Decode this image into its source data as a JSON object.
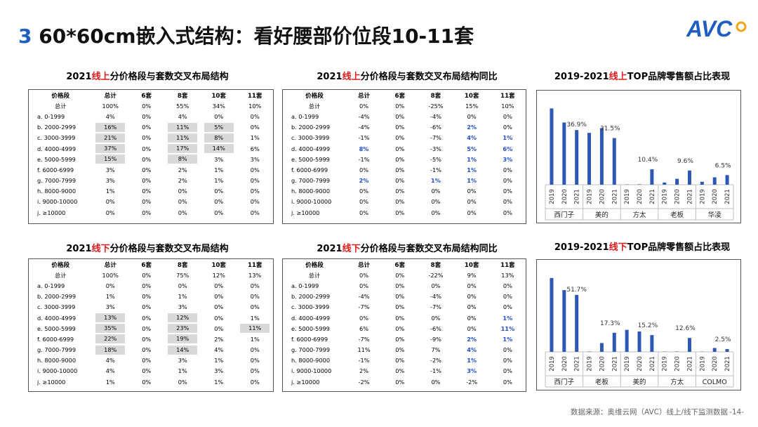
{
  "header": {
    "number": "3",
    "title": "60*60cm嵌入式结构：看好腰部价位段10-11套",
    "logo": "AVC"
  },
  "footer": {
    "source": "数据来源：奥维云网（AVC）线上/线下监测数据",
    "page": "-14-"
  },
  "section_titles": {
    "t1": {
      "pre": "2021",
      "hl": "线上",
      "post": "分价格段与套数交叉布局结构"
    },
    "t2": {
      "pre": "2021",
      "hl": "线上",
      "post": "分价格段与套数交叉布局结构同比"
    },
    "t3": {
      "pre": "2019-2021",
      "hl": "线上",
      "post": "TOP品牌零售额占比表现"
    },
    "t4": {
      "pre": "2021",
      "hl": "线下",
      "post": "分价格段与套数交叉布局结构"
    },
    "t5": {
      "pre": "2021",
      "hl": "线下",
      "post": "分价格段与套数交叉布局结构同比"
    },
    "t6": {
      "pre": "2019-2021",
      "hl": "线下",
      "post": "TOP品牌零售额占比表现"
    }
  },
  "chart_data": [
    {
      "id": "online_structure",
      "type": "table",
      "title": "2021线上分价格段与套数交叉布局结构",
      "columns": [
        "价格段",
        "总计",
        "6套",
        "8套",
        "10套",
        "11套"
      ],
      "rows": [
        [
          "总计",
          "100%",
          "0%",
          "55%",
          "34%",
          "10%"
        ],
        [
          "a. 0-1999",
          "4%",
          "0%",
          "4%",
          "0%",
          "0%"
        ],
        [
          "b. 2000-2999",
          "16%",
          "0%",
          "11%",
          "5%",
          "0%"
        ],
        [
          "c. 3000-3999",
          "21%",
          "0%",
          "11%",
          "8%",
          "1%"
        ],
        [
          "d. 4000-4999",
          "37%",
          "0%",
          "17%",
          "14%",
          "6%"
        ],
        [
          "e. 5000-5999",
          "15%",
          "0%",
          "8%",
          "3%",
          "3%"
        ],
        [
          "f. 6000-6999",
          "3%",
          "0%",
          "2%",
          "1%",
          "0%"
        ],
        [
          "g. 7000-7999",
          "3%",
          "0%",
          "2%",
          "1%",
          "0%"
        ],
        [
          "h. 8000-9000",
          "1%",
          "0%",
          "0%",
          "0%",
          "0%"
        ],
        [
          "i. 9000-10000",
          "0%",
          "0%",
          "0%",
          "0%",
          "0%"
        ],
        [
          "j. ≥10000",
          "0%",
          "0%",
          "0%",
          "0%",
          "0%"
        ]
      ],
      "shaded": [
        [
          2,
          1
        ],
        [
          2,
          3
        ],
        [
          2,
          4
        ],
        [
          3,
          1
        ],
        [
          3,
          3
        ],
        [
          3,
          4
        ],
        [
          4,
          1
        ],
        [
          4,
          3
        ],
        [
          4,
          4
        ],
        [
          5,
          1
        ],
        [
          5,
          3
        ]
      ]
    },
    {
      "id": "online_yoy",
      "type": "table",
      "title": "2021线上分价格段与套数交叉布局结构同比",
      "columns": [
        "价格段",
        "总计",
        "6套",
        "8套",
        "10套",
        "11套"
      ],
      "rows": [
        [
          "总计",
          "0%",
          "0%",
          "-25%",
          "15%",
          "10%"
        ],
        [
          "a. 0-1999",
          "-4%",
          "0%",
          "-4%",
          "0%",
          "0%"
        ],
        [
          "b. 2000-2999",
          "-4%",
          "0%",
          "-6%",
          "2%",
          "0%"
        ],
        [
          "c. 3000-3999",
          "-1%",
          "0%",
          "-7%",
          "4%",
          "1%"
        ],
        [
          "d. 4000-4999",
          "8%",
          "0%",
          "-3%",
          "5%",
          "6%"
        ],
        [
          "e. 5000-5999",
          "-1%",
          "0%",
          "-5%",
          "1%",
          "3%"
        ],
        [
          "f. 6000-6999",
          "0%",
          "0%",
          "-1%",
          "1%",
          "0%"
        ],
        [
          "g. 7000-7999",
          "2%",
          "0%",
          "1%",
          "1%",
          "0%"
        ],
        [
          "h. 8000-9000",
          "0%",
          "0%",
          "0%",
          "0%",
          "0%"
        ],
        [
          "i. 9000-10000",
          "0%",
          "0%",
          "0%",
          "0%",
          "0%"
        ],
        [
          "j. ≥10000",
          "0%",
          "0%",
          "0%",
          "0%",
          "0%"
        ]
      ],
      "blue": [
        [
          2,
          4
        ],
        [
          3,
          4
        ],
        [
          3,
          5
        ],
        [
          4,
          1
        ],
        [
          4,
          4
        ],
        [
          4,
          5
        ],
        [
          5,
          4
        ],
        [
          5,
          5
        ],
        [
          6,
          4
        ],
        [
          7,
          1
        ],
        [
          7,
          3
        ],
        [
          7,
          4
        ]
      ]
    },
    {
      "id": "online_brands",
      "type": "bar",
      "title": "2019-2021线上TOP品牌零售额占比表现",
      "groups": [
        "西门子",
        "美的",
        "方太",
        "老板",
        "华凌"
      ],
      "years": [
        "2019",
        "2020",
        "2021"
      ],
      "values": [
        [
          51.5,
          42.0,
          36.9
        ],
        [
          35.0,
          38.2,
          31.5
        ],
        [
          0.2,
          0.3,
          10.4
        ],
        [
          1.5,
          4.0,
          9.6
        ],
        [
          2.0,
          5.0,
          6.5
        ]
      ],
      "labels": [
        "36.9%",
        "31.5%",
        "10.4%",
        "9.6%",
        "6.5%"
      ],
      "ylim": [
        0,
        55
      ],
      "color": "#2e58b5"
    },
    {
      "id": "offline_structure",
      "type": "table",
      "title": "2021线下分价格段与套数交叉布局结构",
      "columns": [
        "价格段",
        "总计",
        "6套",
        "8套",
        "10套",
        "11套"
      ],
      "rows": [
        [
          "总计",
          "100%",
          "0%",
          "75%",
          "12%",
          "13%"
        ],
        [
          "a. 0-1999",
          "0%",
          "0%",
          "0%",
          "0%",
          "0%"
        ],
        [
          "b. 2000-2999",
          "1%",
          "0%",
          "1%",
          "0%",
          "0%"
        ],
        [
          "c. 3000-3999",
          "3%",
          "0%",
          "3%",
          "0%",
          "0%"
        ],
        [
          "d. 4000-4999",
          "13%",
          "0%",
          "12%",
          "0%",
          "1%"
        ],
        [
          "e. 5000-5999",
          "35%",
          "0%",
          "23%",
          "0%",
          "11%"
        ],
        [
          "f. 6000-6999",
          "22%",
          "0%",
          "19%",
          "2%",
          "1%"
        ],
        [
          "g. 7000-7999",
          "18%",
          "0%",
          "14%",
          "4%",
          "0%"
        ],
        [
          "h. 8000-9000",
          "4%",
          "0%",
          "3%",
          "1%",
          "0%"
        ],
        [
          "i. 9000-10000",
          "4%",
          "0%",
          "1%",
          "3%",
          "0%"
        ],
        [
          "j. ≥10000",
          "1%",
          "0%",
          "0%",
          "1%",
          "0%"
        ]
      ],
      "shaded": [
        [
          4,
          1
        ],
        [
          4,
          3
        ],
        [
          5,
          1
        ],
        [
          5,
          3
        ],
        [
          5,
          5
        ],
        [
          6,
          1
        ],
        [
          6,
          3
        ],
        [
          7,
          1
        ],
        [
          7,
          3
        ]
      ]
    },
    {
      "id": "offline_yoy",
      "type": "table",
      "title": "2021线下分价格段与套数交叉布局结构同比",
      "columns": [
        "价格段",
        "总计",
        "6套",
        "8套",
        "10套",
        "11套"
      ],
      "rows": [
        [
          "总计",
          "0%",
          "0%",
          "-22%",
          "9%",
          "13%"
        ],
        [
          "a. 0-1999",
          "0%",
          "0%",
          "0%",
          "0%",
          "0%"
        ],
        [
          "b. 2000-2999",
          "-4%",
          "0%",
          "-4%",
          "0%",
          "0%"
        ],
        [
          "c. 3000-3999",
          "-7%",
          "0%",
          "-7%",
          "0%",
          "0%"
        ],
        [
          "d. 4000-4999",
          "0%",
          "0%",
          "0%",
          "0%",
          "1%"
        ],
        [
          "e. 5000-5999",
          "6%",
          "0%",
          "-6%",
          "0%",
          "11%"
        ],
        [
          "f. 6000-6999",
          "-7%",
          "0%",
          "-9%",
          "2%",
          "1%"
        ],
        [
          "g. 7000-7999",
          "11%",
          "0%",
          "7%",
          "4%",
          "0%"
        ],
        [
          "h. 8000-9000",
          "-1%",
          "0%",
          "-2%",
          "1%",
          "0%"
        ],
        [
          "i. 9000-10000",
          "2%",
          "0%",
          "-1%",
          "3%",
          "0%"
        ],
        [
          "j. ≥10000",
          "-2%",
          "0%",
          "0%",
          "-2%",
          "0%"
        ]
      ],
      "blue": [
        [
          4,
          5
        ],
        [
          5,
          5
        ],
        [
          6,
          4
        ],
        [
          6,
          5
        ],
        [
          7,
          4
        ],
        [
          8,
          4
        ],
        [
          9,
          4
        ]
      ]
    },
    {
      "id": "offline_brands",
      "type": "bar",
      "title": "2019-2021线下TOP品牌零售额占比表现",
      "groups": [
        "西门子",
        "老板",
        "美的",
        "方太",
        "COLMO"
      ],
      "years": [
        "2019",
        "2020",
        "2021"
      ],
      "values": [
        [
          67.0,
          56.0,
          51.7
        ],
        [
          0.3,
          8.0,
          17.3
        ],
        [
          20.0,
          18.5,
          15.2
        ],
        [
          0.2,
          0.3,
          12.6
        ],
        [
          0.2,
          3.5,
          2.5
        ]
      ],
      "labels": [
        "51.7%",
        "17.3%",
        "15.2%",
        "12.6%",
        "2.5%"
      ],
      "ylim": [
        0,
        72
      ],
      "color": "#2e58b5"
    }
  ]
}
